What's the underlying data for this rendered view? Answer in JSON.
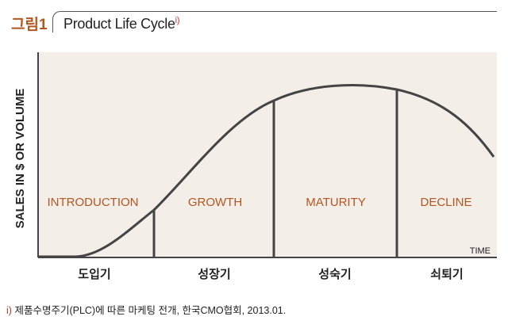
{
  "figure": {
    "label": "그림1",
    "title": "Product Life Cycle",
    "title_mark": "i)"
  },
  "axes": {
    "y_label": "SALES IN $ OR VOLUME",
    "x_label": "TIME"
  },
  "stages": [
    {
      "name": "INTRODUCTION",
      "korean": "도입기"
    },
    {
      "name": "GROWTH",
      "korean": "성장기"
    },
    {
      "name": "MATURITY",
      "korean": "성숙기"
    },
    {
      "name": "DECLINE",
      "korean": "쇠퇴기"
    }
  ],
  "footnote": {
    "mark": "i)",
    "text": "제품수명주기(PLC)에 따른 마케팅 전개, 한국CMO협회, 2013.01."
  },
  "colors": {
    "panel": "#f3eee8",
    "line": "#444444",
    "label_accent": "#b3561f",
    "footnote_mark": "#c0392b"
  }
}
